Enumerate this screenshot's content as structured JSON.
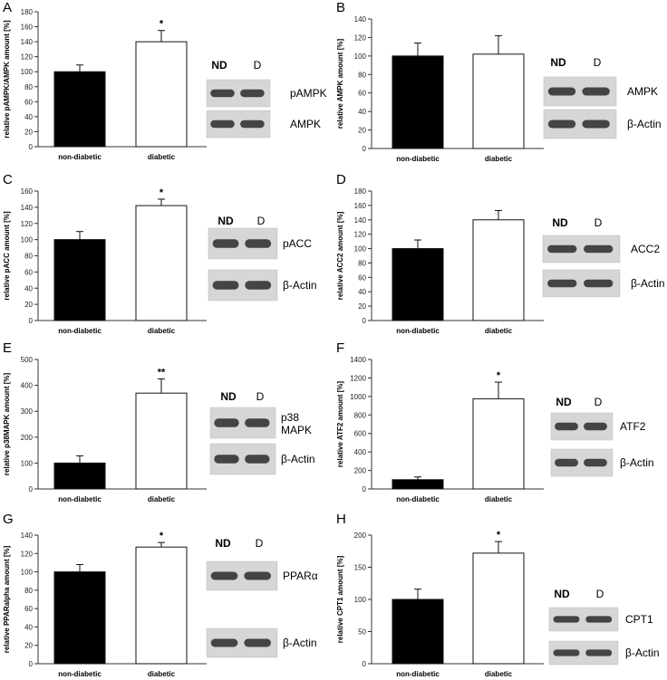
{
  "categories": [
    "non-diabetic",
    "diabetic"
  ],
  "chart_data": [
    {
      "panel": "A",
      "type": "bar",
      "categories": [
        "non-diabetic",
        "diabetic"
      ],
      "values": [
        100,
        140
      ],
      "errors": [
        9,
        15
      ],
      "ylabel": "relative pAMPK/AMPK amount [%]",
      "ylim": [
        0,
        180
      ],
      "yticks": [
        0,
        20,
        40,
        60,
        80,
        100,
        120,
        140,
        160,
        180
      ],
      "significance": [
        "",
        "*"
      ],
      "blot": {
        "lanes": [
          "ND",
          "D"
        ],
        "rows": [
          "pAMPK",
          "AMPK"
        ]
      }
    },
    {
      "panel": "B",
      "type": "bar",
      "categories": [
        "non-diabetic",
        "diabetic"
      ],
      "values": [
        100,
        102
      ],
      "errors": [
        14,
        20
      ],
      "ylabel": "relative AMPK amount [%]",
      "ylim": [
        0,
        140
      ],
      "yticks": [
        0,
        20,
        40,
        60,
        80,
        100,
        120,
        140
      ],
      "significance": [
        "",
        ""
      ],
      "blot": {
        "lanes": [
          "ND",
          "D"
        ],
        "rows": [
          "AMPK",
          "β-Actin"
        ]
      }
    },
    {
      "panel": "C",
      "type": "bar",
      "categories": [
        "non-diabetic",
        "diabetic"
      ],
      "values": [
        100,
        142
      ],
      "errors": [
        10,
        8
      ],
      "ylabel": "relative pACC amount [%]",
      "ylim": [
        0,
        160
      ],
      "yticks": [
        0,
        20,
        40,
        60,
        80,
        100,
        120,
        140,
        160
      ],
      "significance": [
        "",
        "*"
      ],
      "blot": {
        "lanes": [
          "ND",
          "D"
        ],
        "rows": [
          "pACC",
          "β-Actin"
        ]
      }
    },
    {
      "panel": "D",
      "type": "bar",
      "categories": [
        "non-diabetic",
        "diabetic"
      ],
      "values": [
        100,
        140
      ],
      "errors": [
        12,
        13
      ],
      "ylabel": "relative ACC2 amount [%]",
      "ylim": [
        0,
        180
      ],
      "yticks": [
        0,
        20,
        40,
        60,
        80,
        100,
        120,
        140,
        160,
        180
      ],
      "significance": [
        "",
        ""
      ],
      "blot": {
        "lanes": [
          "ND",
          "D"
        ],
        "rows": [
          "ACC2",
          "β-Actin"
        ]
      }
    },
    {
      "panel": "E",
      "type": "bar",
      "categories": [
        "non-diabetic",
        "diabetic"
      ],
      "values": [
        100,
        370
      ],
      "errors": [
        28,
        55
      ],
      "ylabel": "relative p38MAPK amount [%]",
      "ylim": [
        0,
        500
      ],
      "yticks": [
        0,
        100,
        200,
        300,
        400,
        500
      ],
      "significance": [
        "",
        "**"
      ],
      "blot": {
        "lanes": [
          "ND",
          "D"
        ],
        "rows": [
          "p38 MAPK",
          "β-Actin"
        ]
      }
    },
    {
      "panel": "F",
      "type": "bar",
      "categories": [
        "non-diabetic",
        "diabetic"
      ],
      "values": [
        100,
        975
      ],
      "errors": [
        30,
        180
      ],
      "ylabel": "relative ATF2 amount [%]",
      "ylim": [
        0,
        1400
      ],
      "yticks": [
        0,
        200,
        400,
        600,
        800,
        1000,
        1200,
        1400
      ],
      "significance": [
        "",
        "*"
      ],
      "blot": {
        "lanes": [
          "ND",
          "D"
        ],
        "rows": [
          "ATF2",
          "β-Actin"
        ]
      }
    },
    {
      "panel": "G",
      "type": "bar",
      "categories": [
        "non-diabetic",
        "diabetic"
      ],
      "values": [
        100,
        127
      ],
      "errors": [
        8,
        5
      ],
      "ylabel": "relative PPARalpha amount [%]",
      "ylim": [
        0,
        140
      ],
      "yticks": [
        0,
        20,
        40,
        60,
        80,
        100,
        120,
        140
      ],
      "significance": [
        "",
        "*"
      ],
      "blot": {
        "lanes": [
          "ND",
          "D"
        ],
        "rows": [
          "PPARα",
          "β-Actin"
        ]
      }
    },
    {
      "panel": "H",
      "type": "bar",
      "categories": [
        "non-diabetic",
        "diabetic"
      ],
      "values": [
        100,
        172
      ],
      "errors": [
        16,
        18
      ],
      "ylabel": "relative CPT1 amount [%]",
      "ylim": [
        0,
        200
      ],
      "yticks": [
        0,
        50,
        100,
        150,
        200
      ],
      "significance": [
        "",
        "*"
      ],
      "blot": {
        "lanes": [
          "ND",
          "D"
        ],
        "rows": [
          "CPT1",
          "β-Actin"
        ]
      }
    }
  ],
  "colors": {
    "non_diabetic_bar": "#000000",
    "diabetic_bar": "#ffffff",
    "axis": "#333333"
  }
}
